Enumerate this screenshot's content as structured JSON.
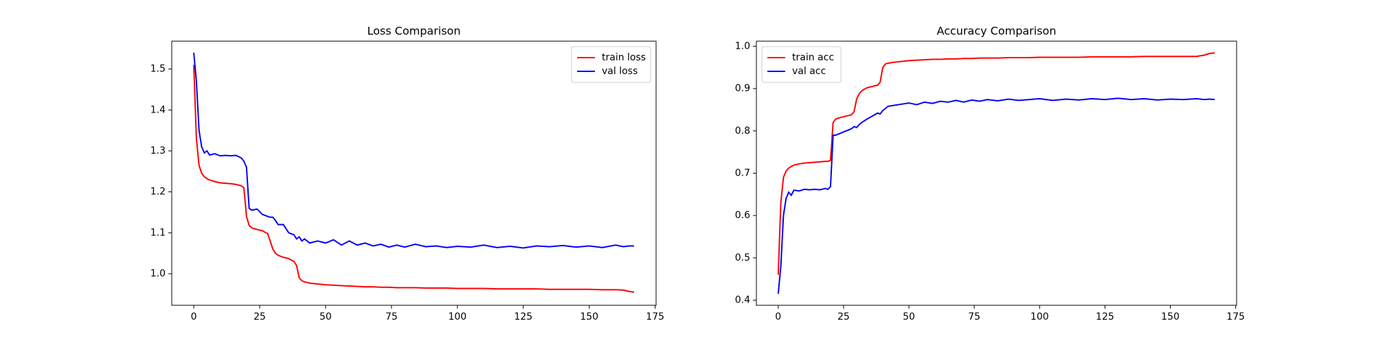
{
  "chart_data": [
    {
      "type": "line",
      "title": "Loss Comparison",
      "x": [
        0,
        1,
        2,
        3,
        4,
        5,
        6,
        8,
        10,
        12,
        14,
        16,
        18,
        19,
        20,
        21,
        22,
        24,
        26,
        28,
        29,
        30,
        31,
        32,
        34,
        36,
        38,
        39,
        40,
        41,
        42,
        44,
        47,
        50,
        53,
        56,
        59,
        62,
        65,
        68,
        71,
        74,
        77,
        80,
        84,
        88,
        92,
        96,
        100,
        105,
        110,
        115,
        120,
        125,
        130,
        135,
        140,
        145,
        150,
        155,
        160,
        163,
        165,
        167
      ],
      "series": [
        {
          "name": "train loss",
          "color": "#ff0000",
          "values": [
            1.51,
            1.33,
            1.265,
            1.245,
            1.237,
            1.232,
            1.229,
            1.225,
            1.222,
            1.221,
            1.22,
            1.218,
            1.215,
            1.21,
            1.14,
            1.118,
            1.112,
            1.108,
            1.105,
            1.098,
            1.08,
            1.06,
            1.05,
            1.045,
            1.04,
            1.037,
            1.03,
            1.02,
            0.99,
            0.983,
            0.98,
            0.977,
            0.975,
            0.973,
            0.972,
            0.971,
            0.97,
            0.969,
            0.968,
            0.968,
            0.967,
            0.967,
            0.966,
            0.966,
            0.966,
            0.965,
            0.965,
            0.965,
            0.964,
            0.964,
            0.964,
            0.963,
            0.963,
            0.963,
            0.963,
            0.962,
            0.962,
            0.962,
            0.962,
            0.961,
            0.961,
            0.96,
            0.957,
            0.955
          ]
        },
        {
          "name": "val loss",
          "color": "#0000ff",
          "values": [
            1.54,
            1.47,
            1.35,
            1.31,
            1.295,
            1.3,
            1.29,
            1.293,
            1.288,
            1.289,
            1.288,
            1.289,
            1.283,
            1.275,
            1.26,
            1.16,
            1.155,
            1.158,
            1.145,
            1.14,
            1.138,
            1.138,
            1.13,
            1.12,
            1.12,
            1.1,
            1.095,
            1.085,
            1.09,
            1.08,
            1.085,
            1.075,
            1.08,
            1.075,
            1.083,
            1.07,
            1.08,
            1.07,
            1.075,
            1.068,
            1.072,
            1.065,
            1.07,
            1.065,
            1.072,
            1.066,
            1.068,
            1.064,
            1.067,
            1.065,
            1.07,
            1.064,
            1.067,
            1.063,
            1.068,
            1.066,
            1.069,
            1.065,
            1.068,
            1.064,
            1.07,
            1.066,
            1.068,
            1.068
          ]
        }
      ],
      "xlim": [
        -8.35,
        175.35
      ],
      "xticks": [
        0,
        25,
        50,
        75,
        100,
        125,
        150,
        175
      ],
      "ylim": [
        0.923,
        1.568
      ],
      "yticks": [
        {
          "value": 1,
          "label": "1.0"
        },
        1.1,
        1.2,
        1.3,
        1.4,
        1.5
      ],
      "legend": "upper right"
    },
    {
      "type": "line",
      "title": "Accuracy Comparison",
      "x": [
        0,
        1,
        2,
        3,
        4,
        5,
        6,
        8,
        10,
        12,
        14,
        16,
        18,
        19,
        20,
        21,
        22,
        24,
        26,
        28,
        29,
        30,
        31,
        32,
        34,
        36,
        38,
        39,
        40,
        41,
        42,
        44,
        47,
        50,
        53,
        56,
        59,
        62,
        65,
        68,
        71,
        74,
        77,
        80,
        84,
        88,
        92,
        96,
        100,
        105,
        110,
        115,
        120,
        125,
        130,
        135,
        140,
        145,
        150,
        155,
        160,
        163,
        165,
        167
      ],
      "series": [
        {
          "name": "train acc",
          "color": "#ff0000",
          "values": [
            0.46,
            0.63,
            0.69,
            0.705,
            0.712,
            0.716,
            0.719,
            0.722,
            0.724,
            0.725,
            0.726,
            0.727,
            0.728,
            0.728,
            0.73,
            0.82,
            0.828,
            0.832,
            0.835,
            0.838,
            0.845,
            0.875,
            0.888,
            0.895,
            0.902,
            0.905,
            0.908,
            0.915,
            0.95,
            0.958,
            0.96,
            0.962,
            0.964,
            0.966,
            0.967,
            0.968,
            0.969,
            0.969,
            0.97,
            0.97,
            0.971,
            0.971,
            0.972,
            0.972,
            0.972,
            0.973,
            0.973,
            0.973,
            0.974,
            0.974,
            0.974,
            0.974,
            0.975,
            0.975,
            0.975,
            0.975,
            0.976,
            0.976,
            0.976,
            0.976,
            0.976,
            0.979,
            0.983,
            0.984
          ]
        },
        {
          "name": "val acc",
          "color": "#0000ff",
          "values": [
            0.415,
            0.48,
            0.6,
            0.64,
            0.655,
            0.648,
            0.66,
            0.658,
            0.662,
            0.661,
            0.662,
            0.661,
            0.664,
            0.662,
            0.668,
            0.79,
            0.79,
            0.795,
            0.8,
            0.805,
            0.81,
            0.808,
            0.815,
            0.82,
            0.828,
            0.835,
            0.842,
            0.84,
            0.848,
            0.853,
            0.858,
            0.86,
            0.863,
            0.866,
            0.862,
            0.868,
            0.865,
            0.87,
            0.868,
            0.872,
            0.868,
            0.873,
            0.87,
            0.874,
            0.871,
            0.875,
            0.872,
            0.874,
            0.876,
            0.872,
            0.875,
            0.873,
            0.876,
            0.874,
            0.877,
            0.874,
            0.876,
            0.873,
            0.875,
            0.874,
            0.876,
            0.874,
            0.875,
            0.874
          ]
        }
      ],
      "xlim": [
        -8.35,
        175.35
      ],
      "xticks": [
        0,
        25,
        50,
        75,
        100,
        125,
        150,
        175
      ],
      "ylim": [
        0.388,
        1.012
      ],
      "yticks": [
        0.4,
        0.5,
        0.6,
        0.7,
        0.8,
        0.9,
        {
          "value": 1,
          "label": "1.0"
        }
      ],
      "legend": "upper left"
    }
  ]
}
